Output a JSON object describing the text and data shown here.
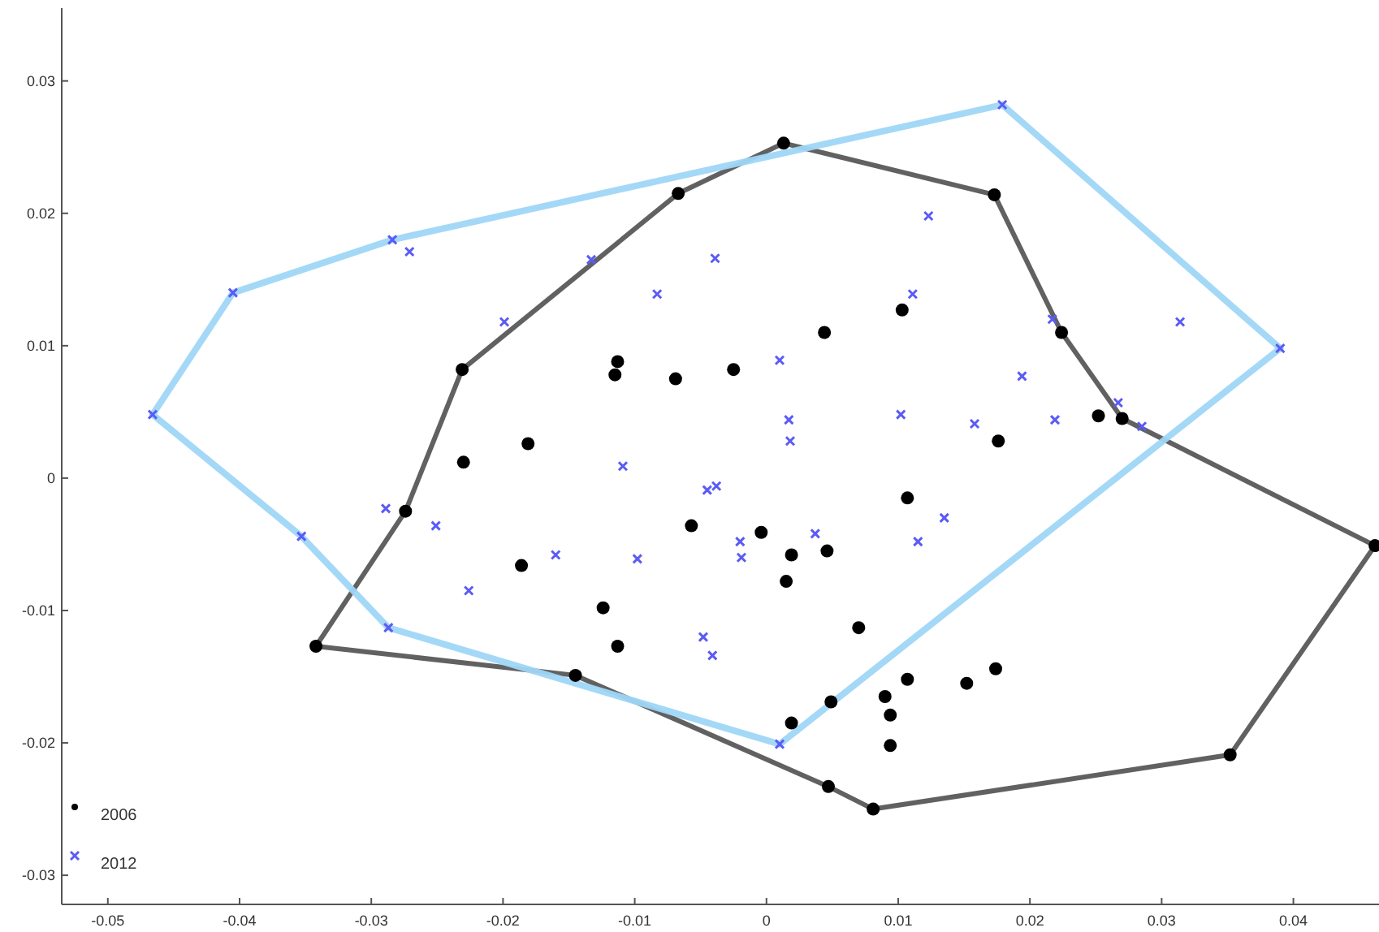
{
  "chart_data": {
    "type": "scatter",
    "xlim": [
      -0.0535,
      0.0465
    ],
    "ylim": [
      -0.0322,
      0.0355
    ],
    "xticks": [
      -0.05,
      -0.04,
      -0.03,
      -0.02,
      -0.01,
      0,
      0.01,
      0.02,
      0.03,
      0.04
    ],
    "yticks": [
      -0.03,
      -0.02,
      -0.01,
      0,
      0.01,
      0.02,
      0.03
    ],
    "grid": false,
    "legend": "bottom left",
    "series": [
      {
        "type": "line",
        "color": "#595959",
        "x": [
          -0.0342,
          -0.0274,
          -0.0231,
          -0.0067,
          0.0013,
          0.0173,
          0.0224,
          0.027,
          0.0462
        ],
        "values": [
          -0.0127,
          -0.0025,
          0.0082,
          0.0215,
          0.0253,
          0.0214,
          0.011,
          0.0045,
          -0.0051
        ]
      },
      {
        "type": "line",
        "color": "#595959",
        "x": [
          -0.0342,
          -0.0145,
          0.0047,
          0.0081,
          0.0352,
          0.0462
        ],
        "values": [
          -0.0127,
          -0.0149,
          -0.0233,
          -0.025,
          -0.0209,
          -0.0051
        ]
      },
      {
        "type": "line",
        "color": "#9fd6f7",
        "x": [
          -0.0466,
          -0.0405,
          -0.0284,
          0.0179,
          0.039
        ],
        "values": [
          0.0048,
          0.014,
          0.018,
          0.0282,
          0.0098
        ]
      },
      {
        "type": "line",
        "color": "#9fd6f7",
        "x": [
          -0.0466,
          -0.0353,
          -0.0287,
          0.001,
          0.039
        ],
        "values": [
          0.0048,
          -0.0044,
          -0.0113,
          -0.0201,
          0.0098
        ]
      },
      {
        "name": "2006",
        "marker": "circle",
        "color": "#000000",
        "x": [
          -0.0342,
          -0.0274,
          -0.0231,
          -0.0067,
          0.0013,
          0.0173,
          0.0224,
          0.027,
          0.0462,
          0.0352,
          0.0081,
          0.0047,
          -0.0145,
          -0.023,
          -0.0181,
          -0.0113,
          -0.0115,
          -0.0069,
          -0.0025,
          0.0044,
          0.0103,
          0.0176,
          0.0252,
          -0.0186,
          -0.0057,
          -0.0004,
          0.0019,
          0.0046,
          0.0015,
          -0.0124,
          -0.0113,
          0.007,
          0.0107,
          0.0049,
          0.0019,
          0.0107,
          0.009,
          0.0094,
          0.0094,
          0.0152,
          0.0174
        ],
        "values": [
          -0.0127,
          -0.0025,
          0.0082,
          0.0215,
          0.0253,
          0.0214,
          0.011,
          0.0045,
          -0.0051,
          -0.0209,
          -0.025,
          -0.0233,
          -0.0149,
          0.0012,
          0.0026,
          0.0088,
          0.0078,
          0.0075,
          0.0082,
          0.011,
          0.0127,
          0.0028,
          0.0047,
          -0.0066,
          -0.0036,
          -0.0041,
          -0.0058,
          -0.0055,
          -0.0078,
          -0.0098,
          -0.0127,
          -0.0113,
          -0.0015,
          -0.0169,
          -0.0185,
          -0.0152,
          -0.0165,
          -0.0179,
          -0.0202,
          -0.0155,
          -0.0144
        ]
      },
      {
        "name": "2012",
        "marker": "cross",
        "color": "#5b5bf5",
        "x": [
          -0.0284,
          -0.0271,
          -0.0405,
          -0.0466,
          -0.0199,
          0.0179,
          0.0123,
          -0.0039,
          -0.0133,
          -0.0083,
          0.0111,
          0.001,
          0.0194,
          0.0017,
          0.0018,
          0.0102,
          0.0158,
          -0.0109,
          0.0314,
          0.039,
          0.0217,
          0.0219,
          0.0267,
          0.0285,
          -0.0289,
          -0.0353,
          -0.0251,
          -0.016,
          -0.0226,
          -0.0287,
          -0.0045,
          -0.0038,
          -0.0098,
          -0.002,
          -0.0019,
          0.0037,
          0.0135,
          0.0115,
          -0.0048,
          -0.0041,
          0.001
        ],
        "values": [
          0.018,
          0.0171,
          0.014,
          0.0048,
          0.0118,
          0.0282,
          0.0198,
          0.0166,
          0.0165,
          0.0139,
          0.0139,
          0.0089,
          0.0077,
          0.0044,
          0.0028,
          0.0048,
          0.0041,
          0.0009,
          0.0118,
          0.0098,
          0.012,
          0.0044,
          0.0057,
          0.0039,
          -0.0023,
          -0.0044,
          -0.0036,
          -0.0058,
          -0.0085,
          -0.0113,
          -0.0009,
          -0.0006,
          -0.0061,
          -0.0048,
          -0.006,
          -0.0042,
          -0.003,
          -0.0048,
          -0.012,
          -0.0134,
          -0.0201
        ]
      }
    ]
  }
}
